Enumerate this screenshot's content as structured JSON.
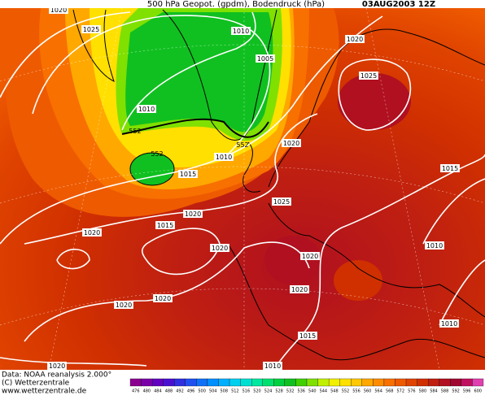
{
  "header": {
    "title": "500 hPa Geopot. (gpdm), Bodendruck (hPa)",
    "date": "03AUG2003 12Z"
  },
  "isobar_labels": [
    "1020",
    "1025",
    "1010",
    "1020",
    "1005",
    "1025",
    "1010",
    "552",
    "552",
    "1020",
    "552",
    "1010",
    "1015",
    "1015",
    "1025",
    "1020",
    "1015",
    "1020",
    "1010",
    "1020",
    "1020",
    "1020",
    "1020",
    "1020",
    "1010",
    "1015",
    "1020",
    "1010"
  ],
  "footer": {
    "source": "Data: NOAA reanalysis 2.000°",
    "copyright": "(C) Wetterzentrale",
    "url": "www.wetterzentrale.de"
  },
  "colorbar": {
    "ticks": [
      476,
      480,
      484,
      488,
      492,
      496,
      500,
      504,
      508,
      512,
      516,
      520,
      524,
      528,
      532,
      536,
      540,
      544,
      548,
      552,
      556,
      560,
      564,
      568,
      572,
      576,
      580,
      584,
      588,
      592,
      596,
      600
    ],
    "colors": [
      "#8a0090",
      "#7a00a8",
      "#6400c0",
      "#4a10d0",
      "#3030e0",
      "#2050f0",
      "#1070f8",
      "#0090ff",
      "#00b0ff",
      "#00d0f0",
      "#00e0d0",
      "#00e8a0",
      "#00e070",
      "#00d040",
      "#10c020",
      "#40d000",
      "#80e000",
      "#c0f000",
      "#f0f000",
      "#ffe000",
      "#ffc800",
      "#ffa800",
      "#ff8c00",
      "#f87000",
      "#ee5a00",
      "#e04400",
      "#d03000",
      "#c02010",
      "#b01020",
      "#a00830",
      "#c01060",
      "#e040b0"
    ]
  }
}
